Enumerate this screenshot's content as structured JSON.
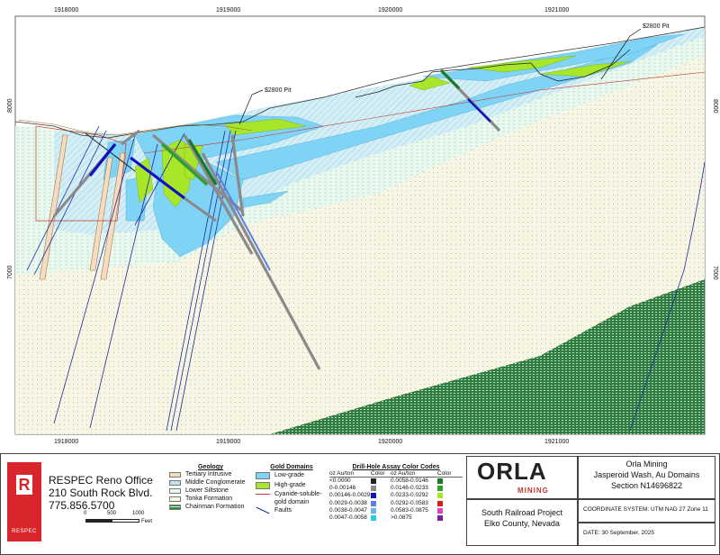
{
  "map": {
    "x_ticks": [
      "1918000",
      "1919000",
      "1920000",
      "1921000"
    ],
    "y_ticks": [
      "8000",
      "7000"
    ],
    "labels": [
      {
        "text": "$2800 Pit",
        "ref": "left_pit"
      },
      {
        "text": "$2800 Pit",
        "ref": "right_pit"
      }
    ],
    "colors": {
      "background": "#ffffff",
      "low_grade": "#7fd3f5",
      "high_grade": "#a8e62a",
      "conglomerate": "#cdeaf4",
      "siltstone": "#e6f7ec",
      "tonka": "#f7f5e0",
      "chainman": "#2e8b45",
      "tertiary": "#f5dcc0",
      "faults": "#1c2c9c",
      "pit": "#333333",
      "cyanide": "#c0392b"
    }
  },
  "company_block": {
    "logo_letter": "R",
    "logo_text": "RESPEC",
    "office": "RESPEC Reno Office",
    "address": "210 South Rock Blvd.",
    "phone": "775.856.5700",
    "scale_labels": [
      "0",
      "500",
      "1000"
    ],
    "scale_unit": "Feet"
  },
  "geology_legend": {
    "title": "Geology",
    "items": [
      {
        "label": "Tertiary Intrusive",
        "color": "#f5dcc0"
      },
      {
        "label": "Middle Conglomerate",
        "color": "#cdeaf4"
      },
      {
        "label": "Lower Siltstone",
        "color": "#e6f7ec"
      },
      {
        "label": "Tonka Formation",
        "color": "#f7f5e0"
      },
      {
        "label": "Chainman Formation",
        "color": "#2e8b45"
      }
    ]
  },
  "gold_legend": {
    "title": "Gold Domains",
    "items": [
      {
        "label": "Low-grade",
        "color": "#7fd3f5"
      },
      {
        "label": "High-grade",
        "color": "#a8e62a"
      },
      {
        "label": "Cyanide-soluble-",
        "label2": "gold domain",
        "color": "#c0392b"
      },
      {
        "label": "Faults",
        "color": "#1c2c9c"
      }
    ]
  },
  "assay_legend": {
    "title": "Drill-Hole Assay Color Codes",
    "headers": [
      "oz Au/ton",
      "Color",
      "oz Au/ton",
      "Color"
    ],
    "rows": [
      {
        "r1": "<0.0000",
        "c1": "#222222",
        "r2": "0.0058-0.0146",
        "c2": "#1a7a2a"
      },
      {
        "r1": "0-0.00146",
        "c1": "#8a8a8a",
        "r2": "0.0146-0.0233",
        "c2": "#2ca02c"
      },
      {
        "r1": "0.00146-0.0029",
        "c1": "#1010c0",
        "r2": "0.0233-0.0292",
        "c2": "#a8e62a"
      },
      {
        "r1": "0.0029-0.0038",
        "c1": "#5a7ee6",
        "r2": "0.0292-0.0583",
        "c2": "#d62020"
      },
      {
        "r1": "0.0038-0.0047",
        "c1": "#6cb4e8",
        "r2": "0.0583-0.0875",
        "c2": "#e040c0"
      },
      {
        "r1": "0.0047-0.0058",
        "c1": "#20d0e0",
        "r2": ">0.0875",
        "c2": "#7a1fa0"
      }
    ]
  },
  "title_block": {
    "logo_top": "ORLA",
    "logo_bottom": "MINING",
    "company": "Orla Mining",
    "title_line1": "Jasperoid Wash, Au Domains",
    "title_line2": "Section N14696822",
    "project": "South Railroad Project",
    "location": "Elko County, Nevada",
    "coordinate_system": "COORDINATE SYSTEM: UTM NAD 27 Zone 11",
    "date": "DATE: 30 September, 2025"
  }
}
